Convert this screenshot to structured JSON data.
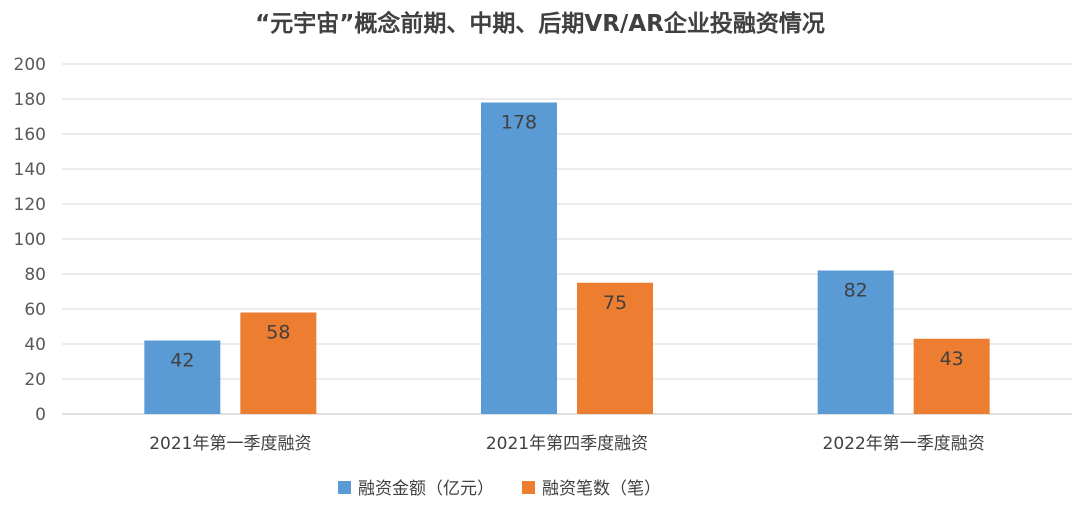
{
  "chart_data": {
    "type": "bar",
    "title": "“元宇宙”概念前期、中期、后期VR/AR企业投融资情况",
    "categories": [
      "2021年第一季度融资",
      "2021年第四季度融资",
      "2022年第一季度融资"
    ],
    "series": [
      {
        "name": "融资金额（亿元）",
        "values": [
          42,
          178,
          82
        ],
        "color": "#5B9BD5"
      },
      {
        "name": "融资笔数（笔）",
        "values": [
          58,
          75,
          43
        ],
        "color": "#ED7D31"
      }
    ],
    "yticks": [
      0,
      20,
      40,
      60,
      80,
      100,
      120,
      140,
      160,
      180,
      200
    ],
    "ylim": [
      0,
      200
    ],
    "grid": true,
    "legend_position": "bottom"
  }
}
